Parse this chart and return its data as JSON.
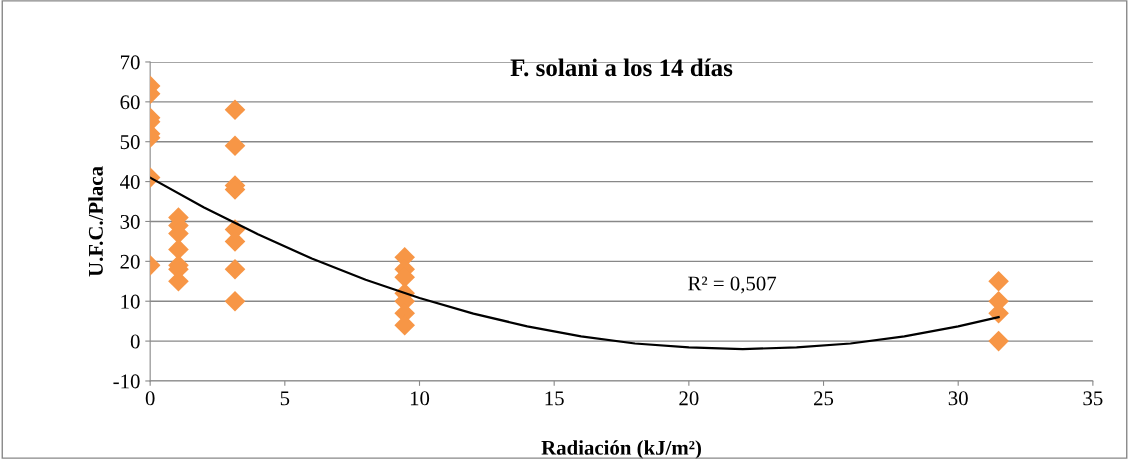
{
  "chart_data": {
    "type": "scatter",
    "title": "F. solani a los 14 días",
    "xlabel": "Radiación (kJ/m²)",
    "ylabel": "U.F.C./Placa",
    "xlim": [
      0,
      35
    ],
    "xticks": [
      0,
      5,
      10,
      15,
      20,
      25,
      30,
      35
    ],
    "ylim": [
      -10,
      70
    ],
    "yticks": [
      -10,
      0,
      10,
      20,
      30,
      40,
      50,
      60,
      70
    ],
    "grid": "y",
    "marker": "diamond",
    "legend": false,
    "series": [
      {
        "color": "#f79646",
        "x": [
          0,
          0,
          0,
          0,
          0,
          0,
          0,
          0,
          1.05,
          1.05,
          1.05,
          1.05,
          1.05,
          1.05,
          1.05,
          3.15,
          3.15,
          3.15,
          3.15,
          3.15,
          3.15,
          3.15,
          3.15,
          9.45,
          9.45,
          9.45,
          9.45,
          9.45,
          9.45,
          9.45,
          31.5,
          31.5,
          31.5,
          31.5
        ],
        "values": [
          64,
          62,
          56,
          55,
          52,
          51,
          41,
          19,
          31,
          29,
          27,
          23,
          19,
          18,
          15,
          58,
          49,
          39,
          38,
          28,
          25,
          18,
          10,
          21,
          18,
          16,
          12,
          10,
          7,
          4,
          15,
          10,
          7,
          0
        ]
      },
      {
        "type": "line",
        "color": "#000000",
        "marker": "none",
        "x": [
          0,
          2,
          4,
          6,
          8,
          10,
          12,
          14,
          16,
          18,
          20,
          22,
          24,
          26,
          28,
          30,
          31.5
        ],
        "values": [
          41.0,
          33.5,
          26.8,
          20.7,
          15.4,
          10.8,
          6.9,
          3.7,
          1.2,
          -0.6,
          -1.6,
          -2.0,
          -1.6,
          -0.6,
          1.2,
          3.7,
          6.0
        ]
      }
    ],
    "annotations": [
      "R² = 0,507"
    ]
  }
}
